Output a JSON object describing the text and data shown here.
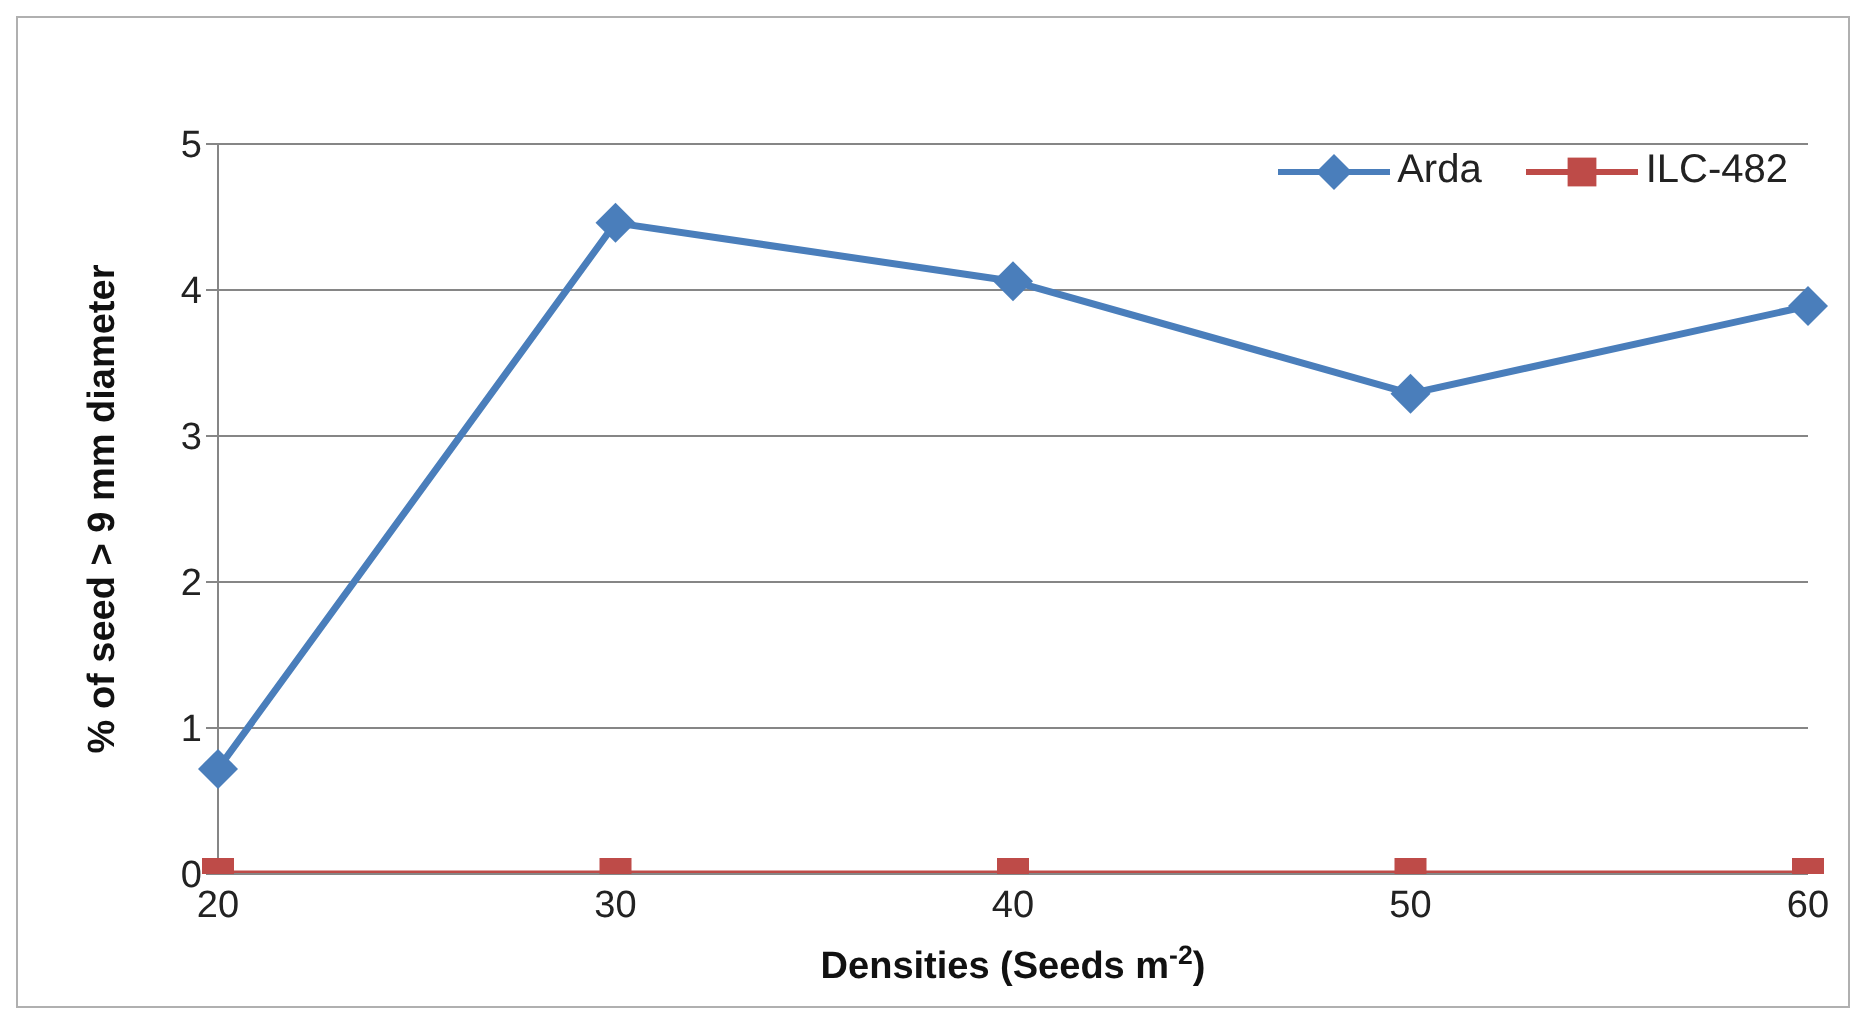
{
  "chart_data": {
    "type": "line",
    "xlabel": "Densities (Seeds m$^{-2}$)",
    "ylabel": "% of seed > 9 mm diameter",
    "categories": [
      "20",
      "30",
      "40",
      "50",
      "60"
    ],
    "series": [
      {
        "name": "Arda",
        "color": "#4a7ebb",
        "marker": "diamond",
        "values": [
          0.72,
          4.46,
          4.06,
          3.29,
          3.89
        ]
      },
      {
        "name": "ILC-482",
        "color": "#be4b48",
        "marker": "square",
        "values": [
          0,
          0,
          0,
          0,
          0
        ]
      }
    ],
    "ylim": [
      0,
      5
    ],
    "yticks": [
      0,
      1,
      2,
      3,
      4,
      5
    ],
    "grid": "y",
    "legend": "top right"
  }
}
